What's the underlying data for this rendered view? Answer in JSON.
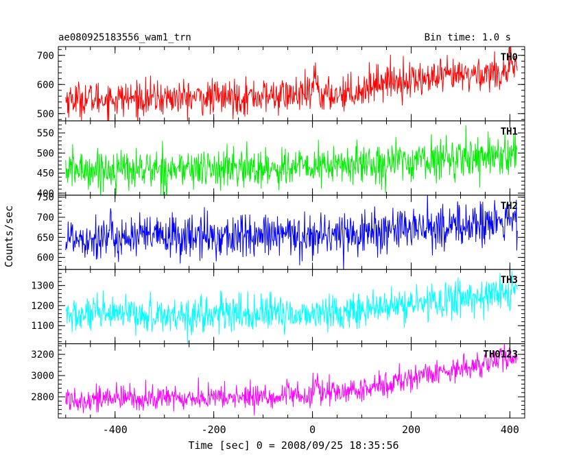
{
  "chart_data": {
    "type": "line",
    "title_left": "ae080925183556_wam1_trn",
    "title_right": "Bin time: 1.0 s",
    "xlabel": "Time [sec] 0 = 2008/09/25 18:35:56",
    "ylabel": "Counts/sec",
    "xlim": [
      -515,
      430
    ],
    "xticks": [
      -400,
      -200,
      0,
      200,
      400
    ],
    "x_start": -500,
    "x_end": 415,
    "bin": 1.0,
    "series": [
      {
        "name": "TH0",
        "color": "#ff0000",
        "ylim": [
          475,
          730
        ],
        "yticks": [
          500,
          600,
          700
        ],
        "trend": [
          [
            -500,
            550
          ],
          [
            -200,
            555
          ],
          [
            0,
            565
          ],
          [
            5,
            640
          ],
          [
            15,
            560
          ],
          [
            100,
            580
          ],
          [
            130,
            610
          ],
          [
            250,
            620
          ],
          [
            415,
            650
          ]
        ],
        "noise_sd": 30
      },
      {
        "name": "TH1",
        "color": "#00ee00",
        "ylim": [
          395,
          580
        ],
        "yticks": [
          400,
          450,
          500,
          550
        ],
        "trend": [
          [
            -500,
            458
          ],
          [
            -100,
            462
          ],
          [
            0,
            465
          ],
          [
            200,
            480
          ],
          [
            415,
            500
          ]
        ],
        "noise_sd": 25
      },
      {
        "name": "TH2",
        "color": "#0000ff",
        "ylim": [
          570,
          755
        ],
        "yticks": [
          600,
          650,
          700,
          750
        ],
        "trend": [
          [
            -500,
            650
          ],
          [
            -100,
            652
          ],
          [
            0,
            655
          ],
          [
            200,
            670
          ],
          [
            415,
            690
          ]
        ],
        "noise_sd": 28
      },
      {
        "name": "TH3",
        "color": "#00ffff",
        "ylim": [
          1010,
          1380
        ],
        "yticks": [
          1100,
          1200,
          1300
        ],
        "trend": [
          [
            -500,
            1150
          ],
          [
            0,
            1160
          ],
          [
            100,
            1175
          ],
          [
            250,
            1220
          ],
          [
            415,
            1270
          ]
        ],
        "noise_sd": 45
      },
      {
        "name": "TH0123",
        "color": "#ff00ff",
        "ylim": [
          2600,
          3300
        ],
        "yticks": [
          2800,
          3000,
          3200
        ],
        "trend": [
          [
            -500,
            2780
          ],
          [
            -200,
            2790
          ],
          [
            0,
            2810
          ],
          [
            5,
            2950
          ],
          [
            15,
            2830
          ],
          [
            100,
            2860
          ],
          [
            200,
            2980
          ],
          [
            415,
            3180
          ]
        ],
        "noise_sd": 60
      }
    ]
  }
}
